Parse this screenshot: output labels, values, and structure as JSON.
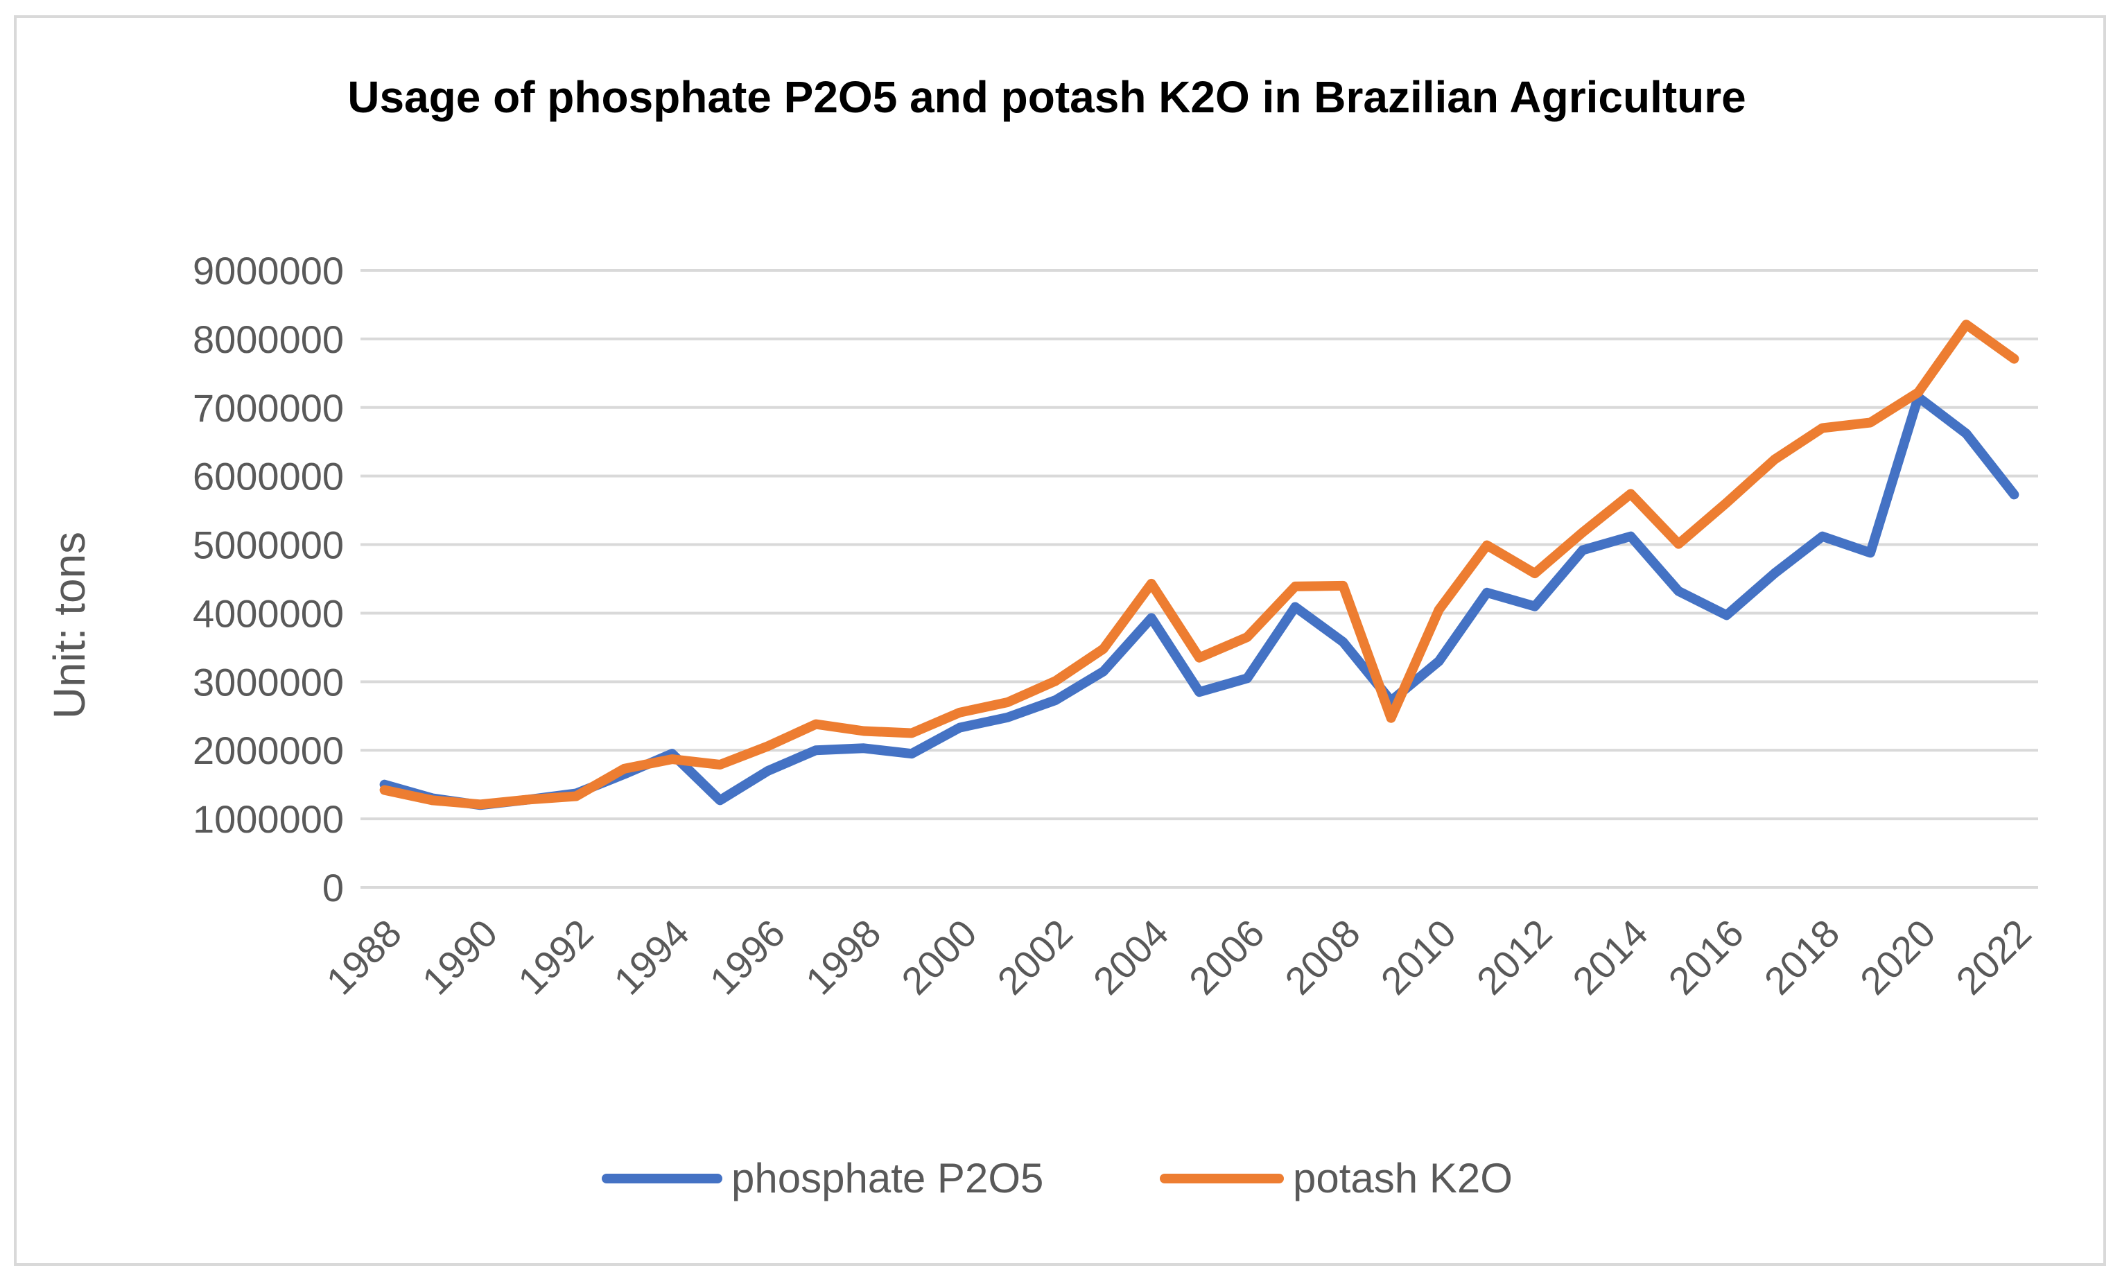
{
  "chart_data": {
    "type": "line",
    "title": "Usage of  phosphate P2O5 and potash K2O in Brazilian Agriculture",
    "xlabel": "",
    "ylabel": "Unit: tons",
    "ylim": [
      0,
      9000000
    ],
    "yticks": [
      0,
      1000000,
      2000000,
      3000000,
      4000000,
      5000000,
      6000000,
      7000000,
      8000000,
      9000000
    ],
    "ytick_labels": [
      "0",
      "1000000",
      "2000000",
      "3000000",
      "4000000",
      "5000000",
      "6000000",
      "7000000",
      "8000000",
      "9000000"
    ],
    "x": [
      1988,
      1989,
      1990,
      1991,
      1992,
      1993,
      1994,
      1995,
      1996,
      1997,
      1998,
      1999,
      2000,
      2001,
      2002,
      2003,
      2004,
      2005,
      2006,
      2007,
      2008,
      2009,
      2010,
      2011,
      2012,
      2013,
      2014,
      2015,
      2016,
      2017,
      2018,
      2019,
      2020,
      2021,
      2022
    ],
    "xtick_labels": [
      "1988",
      "1990",
      "1992",
      "1994",
      "1996",
      "1998",
      "2000",
      "2002",
      "2004",
      "2006",
      "2008",
      "2010",
      "2012",
      "2014",
      "2016",
      "2018",
      "2020",
      "2022"
    ],
    "grid": true,
    "legend_position": "bottom",
    "series": [
      {
        "name": "phosphate P2O5",
        "color": "#4472c4",
        "values": [
          1500000,
          1300000,
          1200000,
          1280000,
          1370000,
          1650000,
          1950000,
          1270000,
          1700000,
          2000000,
          2030000,
          1950000,
          2330000,
          2480000,
          2730000,
          3150000,
          3930000,
          2850000,
          3050000,
          4090000,
          3580000,
          2720000,
          3300000,
          4300000,
          4100000,
          4920000,
          5120000,
          4320000,
          3970000,
          4580000,
          5120000,
          4880000,
          7150000,
          6620000,
          5730000
        ]
      },
      {
        "name": "potash K2O",
        "color": "#ed7d31",
        "values": [
          1420000,
          1270000,
          1210000,
          1280000,
          1330000,
          1730000,
          1870000,
          1790000,
          2060000,
          2380000,
          2280000,
          2250000,
          2550000,
          2700000,
          3010000,
          3480000,
          4430000,
          3350000,
          3650000,
          4390000,
          4400000,
          2470000,
          4050000,
          4990000,
          4580000,
          5180000,
          5740000,
          5010000,
          5610000,
          6240000,
          6700000,
          6780000,
          7220000,
          8210000,
          7710000
        ]
      }
    ]
  }
}
